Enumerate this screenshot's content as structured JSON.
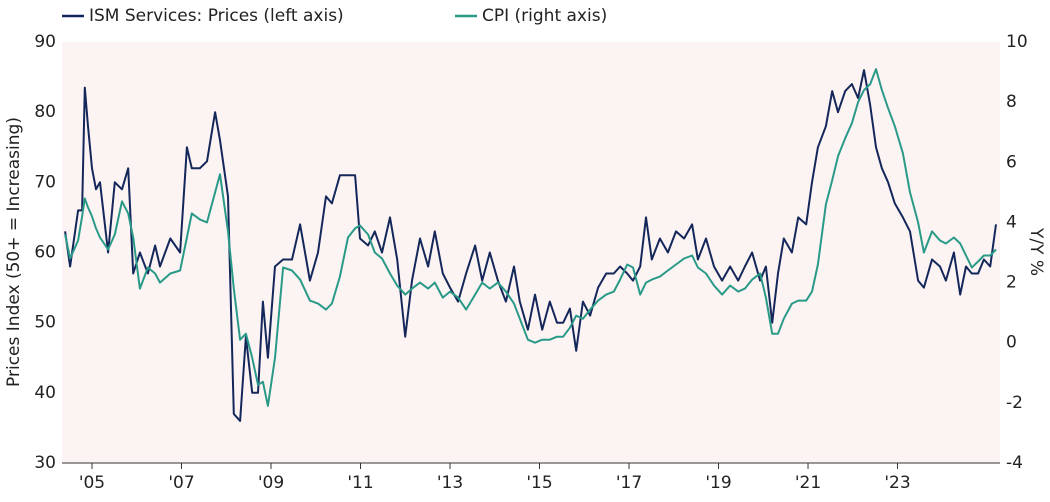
{
  "chart_data": {
    "type": "line",
    "legend": "top",
    "x": [
      2004.4,
      2004.51,
      2004.69,
      2004.78,
      2004.84,
      2004.91,
      2005.0,
      2005.09,
      2005.18,
      2005.36,
      2005.51,
      2005.67,
      2005.81,
      2005.92,
      2006.07,
      2006.25,
      2006.41,
      2006.52,
      2006.75,
      2006.97,
      2007.12,
      2007.23,
      2007.41,
      2007.57,
      2007.75,
      2007.86,
      2008.04,
      2008.17,
      2008.31,
      2008.44,
      2008.58,
      2008.71,
      2008.82,
      2008.93,
      2009.09,
      2009.27,
      2009.47,
      2009.65,
      2009.87,
      2010.05,
      2010.23,
      2010.36,
      2010.54,
      2010.72,
      2010.88,
      2010.99,
      2011.17,
      2011.32,
      2011.48,
      2011.66,
      2011.82,
      2012.0,
      2012.15,
      2012.33,
      2012.51,
      2012.66,
      2012.84,
      2013.0,
      2013.18,
      2013.36,
      2013.56,
      2013.72,
      2013.89,
      2014.07,
      2014.25,
      2014.43,
      2014.56,
      2014.74,
      2014.9,
      2015.06,
      2015.23,
      2015.39,
      2015.53,
      2015.68,
      2015.82,
      2015.97,
      2016.13,
      2016.31,
      2016.49,
      2016.66,
      2016.8,
      2016.96,
      2017.09,
      2017.25,
      2017.38,
      2017.51,
      2017.69,
      2017.87,
      2018.05,
      2018.23,
      2018.41,
      2018.54,
      2018.72,
      2018.9,
      2019.08,
      2019.26,
      2019.44,
      2019.59,
      2019.75,
      2019.93,
      2020.06,
      2020.2,
      2020.33,
      2020.46,
      2020.64,
      2020.78,
      2020.96,
      2021.09,
      2021.22,
      2021.4,
      2021.54,
      2021.67,
      2021.83,
      2021.98,
      2022.12,
      2022.25,
      2022.39,
      2022.52,
      2022.65,
      2022.79,
      2022.94,
      2023.12,
      2023.28,
      2023.46,
      2023.59,
      2023.77,
      2023.95,
      2024.08,
      2024.26,
      2024.4,
      2024.53,
      2024.66,
      2024.8,
      2024.93,
      2025.07,
      2025.2
    ],
    "series": [
      {
        "name": "ISM Services: Prices (left axis)",
        "color": "#14275a",
        "values": [
          63,
          58,
          66,
          66,
          83.5,
          78,
          72,
          69,
          70,
          60,
          70,
          69,
          72,
          57,
          60,
          57,
          61,
          58,
          62,
          60,
          75,
          72,
          72,
          73,
          80,
          76,
          68,
          37,
          36,
          48,
          40,
          40,
          53,
          45,
          58,
          59,
          59,
          64,
          56,
          60,
          68,
          67,
          71,
          71,
          71,
          62,
          61,
          63,
          60,
          65,
          59,
          48,
          56,
          62,
          58,
          63,
          57,
          55,
          53,
          57,
          61,
          56,
          60,
          56,
          53,
          58,
          53,
          49,
          54,
          49,
          53,
          50,
          50,
          52,
          46,
          53,
          51,
          55,
          57,
          57,
          58,
          57,
          56,
          58,
          65,
          59,
          62,
          60,
          63,
          62,
          64,
          59,
          62,
          58,
          56,
          58,
          56,
          58,
          60,
          56,
          58,
          50,
          57,
          62,
          60,
          65,
          64,
          70,
          75,
          78,
          83,
          80,
          83,
          84,
          82,
          86,
          81,
          75,
          72,
          70,
          67,
          65,
          63,
          56,
          55,
          59,
          58,
          56,
          60,
          54,
          58,
          57,
          57,
          59,
          58,
          64
        ]
      },
      {
        "name": "CPI (right axis)",
        "color": "#2a9a88",
        "axis": "y2",
        "values": [
          3.6,
          2.8,
          3.4,
          4.2,
          4.8,
          4.5,
          4.2,
          3.8,
          3.5,
          3.1,
          3.6,
          4.7,
          4.3,
          3.5,
          1.8,
          2.5,
          2.3,
          2.0,
          2.3,
          2.4,
          3.5,
          4.3,
          4.1,
          4.0,
          5.0,
          5.6,
          3.7,
          1.8,
          0.1,
          0.3,
          -0.5,
          -1.4,
          -1.3,
          -2.1,
          -0.5,
          2.5,
          2.4,
          2.1,
          1.4,
          1.3,
          1.1,
          1.3,
          2.2,
          3.5,
          3.8,
          3.9,
          3.6,
          3.0,
          2.8,
          2.3,
          1.9,
          1.6,
          1.8,
          2.0,
          1.8,
          2.0,
          1.5,
          1.7,
          1.5,
          1.1,
          1.6,
          2.0,
          1.8,
          2.0,
          1.7,
          1.3,
          0.8,
          0.1,
          0.0,
          0.1,
          0.1,
          0.2,
          0.2,
          0.5,
          0.9,
          0.8,
          1.1,
          1.4,
          1.6,
          1.7,
          2.1,
          2.6,
          2.5,
          1.6,
          2.0,
          2.1,
          2.2,
          2.4,
          2.6,
          2.8,
          2.9,
          2.5,
          2.3,
          1.9,
          1.6,
          1.9,
          1.7,
          1.8,
          2.1,
          2.3,
          1.5,
          0.3,
          0.3,
          0.8,
          1.3,
          1.4,
          1.4,
          1.7,
          2.6,
          4.6,
          5.4,
          6.2,
          6.8,
          7.3,
          8.0,
          8.4,
          8.6,
          9.1,
          8.4,
          7.8,
          7.2,
          6.3,
          5.0,
          4.0,
          3.0,
          3.7,
          3.4,
          3.3,
          3.5,
          3.3,
          2.9,
          2.5,
          2.7,
          2.9,
          2.9,
          3.1
        ]
      }
    ],
    "y_label": "Prices Index (50+ = Increasing)",
    "y2_label": "Y/Y %",
    "xlim": [
      2004.33,
      2025.29
    ],
    "xticks": [
      {
        "value": 2005,
        "label": "'05"
      },
      {
        "value": 2007,
        "label": "'07"
      },
      {
        "value": 2009,
        "label": "'09"
      },
      {
        "value": 2011,
        "label": "'11"
      },
      {
        "value": 2013,
        "label": "'13"
      },
      {
        "value": 2015,
        "label": "'15"
      },
      {
        "value": 2017,
        "label": "'17"
      },
      {
        "value": 2019,
        "label": "'19"
      },
      {
        "value": 2021,
        "label": "'21"
      },
      {
        "value": 2023,
        "label": "'23"
      }
    ],
    "ylim": [
      30,
      90
    ],
    "yticks": [
      30,
      40,
      50,
      60,
      70,
      80,
      90
    ],
    "y2lim": [
      -4,
      10
    ],
    "y2ticks": [
      -4,
      -2,
      0,
      2,
      4,
      6,
      8,
      10
    ],
    "background": "#fcf3f3"
  }
}
